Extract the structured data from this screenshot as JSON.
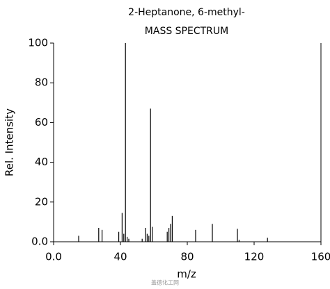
{
  "chart_data": {
    "type": "bar",
    "title": "2-Heptanone, 6-methyl-",
    "subtitle": "MASS SPECTRUM",
    "x_label": "m/z",
    "y_label": "Rel. Intensity",
    "watermark": "盖德化工网",
    "color": "#000000",
    "x": [
      15,
      27,
      29,
      39,
      41,
      42,
      43,
      44,
      45,
      53,
      55,
      56,
      57,
      58,
      59,
      68,
      69,
      70,
      71,
      85,
      95,
      110,
      111,
      128
    ],
    "values": [
      3,
      7,
      6,
      5,
      14.5,
      4,
      100,
      2.5,
      1.5,
      1.5,
      7,
      4,
      3,
      67,
      7.5,
      5,
      7,
      9,
      13,
      6,
      9,
      6.5,
      1,
      2
    ],
    "xlim": [
      0,
      160
    ],
    "xticks": [
      {
        "value": 0,
        "label": "0.0"
      },
      40,
      80,
      120,
      160
    ],
    "ylim": [
      0,
      100
    ],
    "yticks": [
      {
        "value": 0,
        "label": "0.0"
      },
      20,
      40,
      60,
      80,
      100
    ]
  }
}
